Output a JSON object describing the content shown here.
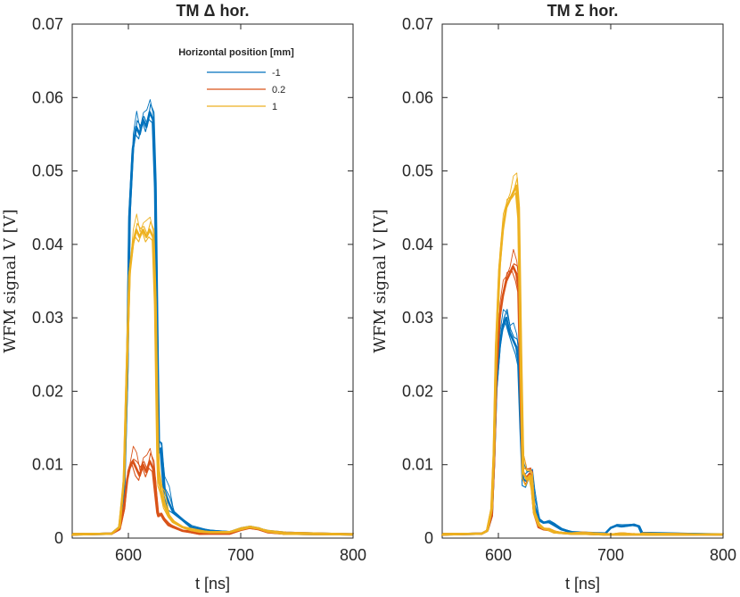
{
  "chart_data": [
    {
      "type": "line",
      "title": "TM  Δ hor.",
      "xlabel": "t [ns]",
      "ylabel": "WFM signal V [V]",
      "xlim": [
        550,
        800
      ],
      "ylim": [
        0,
        0.07
      ],
      "xticks": [
        "600",
        "700",
        "800"
      ],
      "yticks": [
        "0",
        "0.01",
        "0.02",
        "0.03",
        "0.04",
        "0.05",
        "0.06",
        "0.07"
      ],
      "legend": {
        "title": "Horizontal position [mm]",
        "placement": "top-center",
        "entries": [
          "-1",
          "0.2",
          "1"
        ]
      },
      "series": [
        {
          "name": "-1",
          "color": "#0072BD",
          "x": [
            550,
            585,
            592,
            596,
            599,
            601,
            604,
            607,
            610,
            613,
            616,
            619,
            622,
            624,
            626,
            627,
            629,
            632,
            636,
            640,
            648,
            656,
            664,
            672,
            690,
            700,
            708,
            716,
            724,
            740,
            800
          ],
          "y": [
            0.0005,
            0.0006,
            0.0015,
            0.006,
            0.022,
            0.044,
            0.053,
            0.056,
            0.055,
            0.057,
            0.056,
            0.058,
            0.057,
            0.048,
            0.022,
            0.012,
            0.0122,
            0.0065,
            0.0048,
            0.0035,
            0.0025,
            0.0015,
            0.0012,
            0.001,
            0.0008,
            0.0012,
            0.0015,
            0.0013,
            0.0009,
            0.0006,
            0.0005
          ]
        },
        {
          "name": "0.2",
          "color": "#D95319",
          "x": [
            550,
            585,
            592,
            596,
            599,
            601,
            604,
            607,
            610,
            613,
            616,
            619,
            622,
            624,
            626,
            627,
            629,
            632,
            636,
            640,
            648,
            656,
            664,
            672,
            690,
            700,
            708,
            716,
            724,
            740,
            800
          ],
          "y": [
            0.0005,
            0.0006,
            0.0012,
            0.004,
            0.008,
            0.0095,
            0.0105,
            0.0095,
            0.0085,
            0.01,
            0.009,
            0.0105,
            0.0095,
            0.0065,
            0.0035,
            0.003,
            0.0033,
            0.0025,
            0.0018,
            0.0015,
            0.001,
            0.0008,
            0.0006,
            0.0006,
            0.0006,
            0.0011,
            0.0014,
            0.0012,
            0.0008,
            0.0006,
            0.0005
          ]
        },
        {
          "name": "1",
          "color": "#EDB120",
          "x": [
            550,
            585,
            592,
            596,
            599,
            601,
            604,
            607,
            610,
            613,
            616,
            619,
            622,
            624,
            626,
            627,
            629,
            632,
            636,
            640,
            648,
            656,
            664,
            672,
            690,
            700,
            708,
            716,
            724,
            740,
            800
          ],
          "y": [
            0.0005,
            0.0006,
            0.0015,
            0.008,
            0.025,
            0.036,
            0.04,
            0.042,
            0.041,
            0.042,
            0.041,
            0.042,
            0.041,
            0.032,
            0.012,
            0.008,
            0.0065,
            0.0045,
            0.003,
            0.0022,
            0.0015,
            0.0011,
            0.0009,
            0.0008,
            0.0008,
            0.0012,
            0.0015,
            0.0013,
            0.0009,
            0.0006,
            0.0005
          ]
        }
      ]
    },
    {
      "type": "line",
      "title": "TM  Σ hor.",
      "xlabel": "t [ns]",
      "ylabel": "WFM signal V [V]",
      "xlim": [
        550,
        800
      ],
      "ylim": [
        0,
        0.07
      ],
      "xticks": [
        "600",
        "700",
        "800"
      ],
      "yticks": [
        "0",
        "0.01",
        "0.02",
        "0.03",
        "0.04",
        "0.05",
        "0.06",
        "0.07"
      ],
      "series": [
        {
          "name": "-1",
          "color": "#0072BD",
          "x": [
            550,
            585,
            590,
            594,
            596,
            598,
            601,
            604,
            607,
            610,
            613,
            616,
            618,
            620,
            622,
            625,
            628,
            630,
            632,
            636,
            640,
            645,
            650,
            656,
            665,
            675,
            695,
            700,
            705,
            710,
            720,
            725,
            728,
            735,
            800
          ],
          "y": [
            0.0005,
            0.0006,
            0.001,
            0.003,
            0.01,
            0.02,
            0.026,
            0.029,
            0.03,
            0.028,
            0.027,
            0.026,
            0.024,
            0.015,
            0.008,
            0.0078,
            0.0085,
            0.0075,
            0.0045,
            0.0025,
            0.0021,
            0.0022,
            0.0018,
            0.0012,
            0.0008,
            0.0006,
            0.0006,
            0.0014,
            0.0017,
            0.0016,
            0.0018,
            0.0016,
            0.0006,
            0.0006,
            0.0005
          ]
        },
        {
          "name": "0.2",
          "color": "#D95319",
          "x": [
            550,
            585,
            590,
            594,
            596,
            598,
            601,
            604,
            607,
            610,
            613,
            616,
            618,
            620,
            622,
            625,
            628,
            630,
            632,
            636,
            640,
            645,
            650,
            656,
            665,
            675,
            695,
            700,
            705,
            710,
            720,
            725,
            728,
            735,
            800
          ],
          "y": [
            0.0005,
            0.0006,
            0.001,
            0.003,
            0.01,
            0.022,
            0.03,
            0.033,
            0.035,
            0.036,
            0.037,
            0.036,
            0.034,
            0.02,
            0.009,
            0.0082,
            0.0088,
            0.0072,
            0.0035,
            0.0015,
            0.0012,
            0.0011,
            0.0008,
            0.0007,
            0.0006,
            0.0006,
            0.0005,
            0.0005,
            0.0005,
            0.0005,
            0.0005,
            0.0005,
            0.0005,
            0.0005,
            0.0005
          ]
        },
        {
          "name": "1",
          "color": "#EDB120",
          "x": [
            550,
            585,
            590,
            594,
            596,
            598,
            601,
            604,
            607,
            610,
            613,
            616,
            618,
            620,
            622,
            625,
            628,
            630,
            632,
            636,
            640,
            645,
            650,
            656,
            665,
            675,
            695,
            700,
            705,
            710,
            720,
            725,
            728,
            735,
            800
          ],
          "y": [
            0.0005,
            0.0006,
            0.001,
            0.004,
            0.012,
            0.026,
            0.037,
            0.042,
            0.045,
            0.046,
            0.047,
            0.048,
            0.044,
            0.025,
            0.009,
            0.008,
            0.0085,
            0.007,
            0.0035,
            0.0018,
            0.0013,
            0.0011,
            0.0008,
            0.0007,
            0.0006,
            0.0006,
            0.0005,
            0.0005,
            0.0005,
            0.0005,
            0.0005,
            0.0005,
            0.0005,
            0.0005,
            0.0005
          ]
        }
      ]
    }
  ]
}
